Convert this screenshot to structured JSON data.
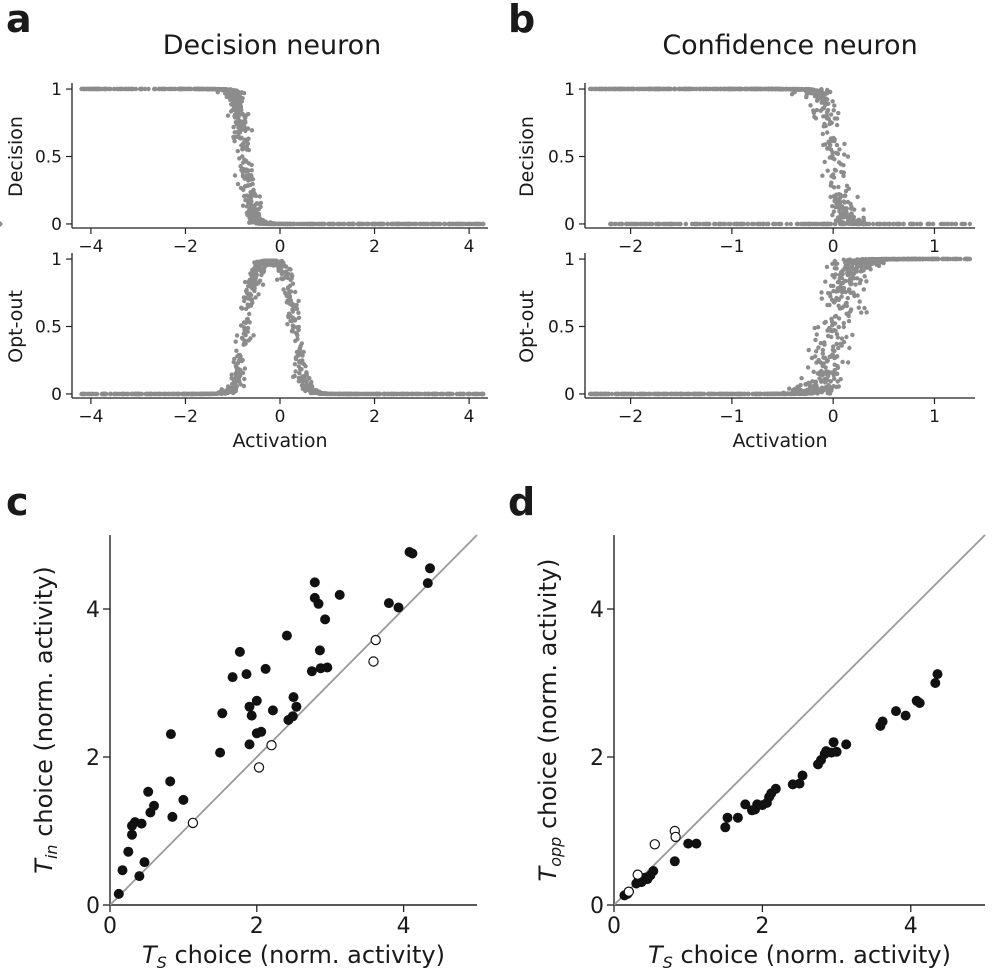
{
  "figure": {
    "panel_labels": [
      "a",
      "b",
      "c",
      "d"
    ],
    "column_titles": [
      "Decision neuron",
      "Confidence neuron"
    ]
  },
  "chart_data": [
    {
      "panel": "a",
      "type": "scatter",
      "title": "Decision neuron",
      "xlabel": "",
      "ylabel": "Decision",
      "xlim": [
        -4.4,
        4.4
      ],
      "ylim": [
        -0.03,
        1.03
      ],
      "xticks": [
        -4,
        -2,
        0,
        2,
        4
      ],
      "xtick_labels": [
        "−4",
        "−2",
        "0",
        "2",
        "4"
      ],
      "yticks": [
        0,
        0.5,
        1
      ],
      "ytick_labels": [
        "0",
        "0.5",
        "1"
      ],
      "color": "#8c8c8c",
      "series": [
        {
          "name": "Decision",
          "shape": "decreasing-sigmoid",
          "range": [
            -4.2,
            4.3
          ],
          "center": -0.75,
          "width": 0.08,
          "jitter": 0.2,
          "n": 900
        }
      ]
    },
    {
      "panel": "a",
      "type": "scatter",
      "xlabel": "Activation",
      "ylabel": "Opt-out",
      "xlim": [
        -4.4,
        4.4
      ],
      "ylim": [
        -0.03,
        1.03
      ],
      "xticks": [
        -4,
        -2,
        0,
        2,
        4
      ],
      "xtick_labels": [
        "−4",
        "−2",
        "0",
        "2",
        "4"
      ],
      "yticks": [
        0,
        0.5,
        1
      ],
      "ytick_labels": [
        "0",
        "0.5",
        "1"
      ],
      "color": "#8c8c8c",
      "series": [
        {
          "name": "Opt-out",
          "shape": "bump",
          "range": [
            -4.2,
            4.3
          ],
          "left": -0.72,
          "right": 0.3,
          "width": 0.1,
          "jitter": 0.18,
          "n": 1000
        }
      ]
    },
    {
      "panel": "b",
      "type": "scatter",
      "title": "Confidence neuron",
      "xlabel": "",
      "ylabel": "Decision",
      "xlim": [
        -2.45,
        1.4
      ],
      "ylim": [
        -0.03,
        1.03
      ],
      "xticks": [
        -2,
        -1,
        0,
        1
      ],
      "xtick_labels": [
        "−2",
        "−1",
        "0",
        "1"
      ],
      "yticks": [
        0,
        0.5,
        1
      ],
      "ytick_labels": [
        "0",
        "0.5",
        "1"
      ],
      "color": "#8c8c8c",
      "series": [
        {
          "name": "Decision upper branch",
          "shape": "decreasing-sigmoid",
          "range": [
            -2.4,
            0.3
          ],
          "center": 0.0,
          "width": 0.05,
          "jitter": 0.15,
          "n": 800
        },
        {
          "name": "Decision lower branch",
          "shape": "flat",
          "range": [
            -2.2,
            1.35
          ],
          "value": 0,
          "n": 500
        }
      ]
    },
    {
      "panel": "b",
      "type": "scatter",
      "xlabel": "Activation",
      "ylabel": "Opt-out",
      "xlim": [
        -2.45,
        1.4
      ],
      "ylim": [
        -0.03,
        1.03
      ],
      "xticks": [
        -2,
        -1,
        0,
        1
      ],
      "xtick_labels": [
        "−2",
        "−1",
        "0",
        "1"
      ],
      "yticks": [
        0,
        0.5,
        1
      ],
      "ytick_labels": [
        "0",
        "0.5",
        "1"
      ],
      "color": "#8c8c8c",
      "series": [
        {
          "name": "Opt-out",
          "shape": "increasing-sigmoid",
          "range": [
            -2.4,
            1.35
          ],
          "center": 0.02,
          "width": 0.07,
          "jitter": 0.25,
          "n": 1000
        }
      ]
    },
    {
      "panel": "c",
      "type": "scatter",
      "xlabel": "T_S choice (norm. activity)",
      "ylabel": "T_in choice (norm. activity)",
      "xlabel_parts": {
        "base": "T",
        "sub": "S",
        "rest": " choice (norm. activity)"
      },
      "ylabel_parts": {
        "base": "T",
        "sub": "in",
        "rest": " choice (norm. activity)"
      },
      "xlim": [
        0,
        5
      ],
      "ylim": [
        0,
        5
      ],
      "xticks": [
        0,
        2,
        4
      ],
      "yticks": [
        0,
        2,
        4
      ],
      "tick_labels": [
        "0",
        "2",
        "4"
      ],
      "identity_line": true,
      "filled": [
        [
          0.12,
          0.15
        ],
        [
          0.17,
          0.47
        ],
        [
          0.25,
          0.72
        ],
        [
          0.3,
          0.95
        ],
        [
          0.3,
          1.07
        ],
        [
          0.34,
          1.12
        ],
        [
          0.4,
          0.39
        ],
        [
          0.43,
          1.1
        ],
        [
          0.47,
          0.58
        ],
        [
          0.52,
          1.53
        ],
        [
          0.55,
          1.25
        ],
        [
          0.6,
          1.34
        ],
        [
          0.82,
          1.67
        ],
        [
          0.83,
          2.31
        ],
        [
          0.85,
          1.19
        ],
        [
          1.0,
          1.42
        ],
        [
          1.5,
          2.06
        ],
        [
          1.53,
          2.59
        ],
        [
          1.67,
          3.08
        ],
        [
          1.77,
          3.42
        ],
        [
          1.86,
          3.12
        ],
        [
          1.9,
          2.68
        ],
        [
          1.9,
          2.17
        ],
        [
          1.93,
          2.56
        ],
        [
          2.0,
          2.76
        ],
        [
          2.0,
          2.32
        ],
        [
          2.06,
          2.34
        ],
        [
          2.12,
          3.19
        ],
        [
          2.22,
          2.63
        ],
        [
          2.41,
          3.64
        ],
        [
          2.43,
          2.5
        ],
        [
          2.49,
          2.55
        ],
        [
          2.5,
          2.81
        ],
        [
          2.54,
          2.68
        ],
        [
          2.75,
          3.16
        ],
        [
          2.79,
          4.36
        ],
        [
          2.79,
          4.15
        ],
        [
          2.84,
          4.07
        ],
        [
          2.86,
          3.44
        ],
        [
          2.87,
          3.2
        ],
        [
          2.93,
          3.86
        ],
        [
          2.96,
          3.21
        ],
        [
          3.13,
          4.19
        ],
        [
          3.8,
          4.08
        ],
        [
          3.93,
          4.02
        ],
        [
          4.08,
          4.77
        ],
        [
          4.12,
          4.75
        ],
        [
          4.33,
          4.35
        ],
        [
          4.36,
          4.55
        ]
      ],
      "open": [
        [
          1.13,
          1.11
        ],
        [
          2.03,
          1.86
        ],
        [
          2.2,
          2.16
        ],
        [
          3.59,
          3.29
        ],
        [
          3.62,
          3.58
        ]
      ]
    },
    {
      "panel": "d",
      "type": "scatter",
      "xlabel": "T_S choice (norm. activity)",
      "ylabel": "T_opp choice (norm. activity)",
      "xlabel_parts": {
        "base": "T",
        "sub": "S",
        "rest": " choice (norm. activity)"
      },
      "ylabel_parts": {
        "base": "T",
        "sub": "opp",
        "rest": " choice (norm. activity)"
      },
      "xlim": [
        0,
        5
      ],
      "ylim": [
        0,
        5
      ],
      "xticks": [
        0,
        2,
        4
      ],
      "yticks": [
        0,
        2,
        4
      ],
      "tick_labels": [
        "0",
        "2",
        "4"
      ],
      "identity_line": true,
      "filled": [
        [
          0.14,
          0.13
        ],
        [
          0.18,
          0.15
        ],
        [
          0.3,
          0.29
        ],
        [
          0.33,
          0.33
        ],
        [
          0.37,
          0.31
        ],
        [
          0.42,
          0.37
        ],
        [
          0.45,
          0.35
        ],
        [
          0.49,
          0.4
        ],
        [
          0.53,
          0.46
        ],
        [
          0.82,
          0.59
        ],
        [
          1.0,
          0.83
        ],
        [
          1.11,
          0.83
        ],
        [
          1.5,
          1.05
        ],
        [
          1.53,
          1.18
        ],
        [
          1.67,
          1.18
        ],
        [
          1.77,
          1.36
        ],
        [
          1.86,
          1.28
        ],
        [
          1.9,
          1.29
        ],
        [
          1.93,
          1.36
        ],
        [
          2.0,
          1.35
        ],
        [
          2.06,
          1.38
        ],
        [
          2.09,
          1.46
        ],
        [
          2.12,
          1.51
        ],
        [
          2.18,
          1.57
        ],
        [
          2.41,
          1.63
        ],
        [
          2.5,
          1.64
        ],
        [
          2.54,
          1.75
        ],
        [
          2.75,
          1.9
        ],
        [
          2.79,
          1.96
        ],
        [
          2.84,
          2.04
        ],
        [
          2.86,
          2.08
        ],
        [
          2.93,
          2.06
        ],
        [
          2.96,
          2.2
        ],
        [
          3.0,
          2.07
        ],
        [
          3.13,
          2.17
        ],
        [
          3.59,
          2.42
        ],
        [
          3.62,
          2.48
        ],
        [
          3.8,
          2.62
        ],
        [
          3.93,
          2.56
        ],
        [
          4.08,
          2.76
        ],
        [
          4.12,
          2.73
        ],
        [
          4.33,
          3.0
        ],
        [
          4.36,
          3.12
        ]
      ],
      "open": [
        [
          0.2,
          0.18
        ],
        [
          0.32,
          0.41
        ],
        [
          0.55,
          0.82
        ],
        [
          0.82,
          1.0
        ],
        [
          0.83,
          0.92
        ]
      ]
    }
  ]
}
